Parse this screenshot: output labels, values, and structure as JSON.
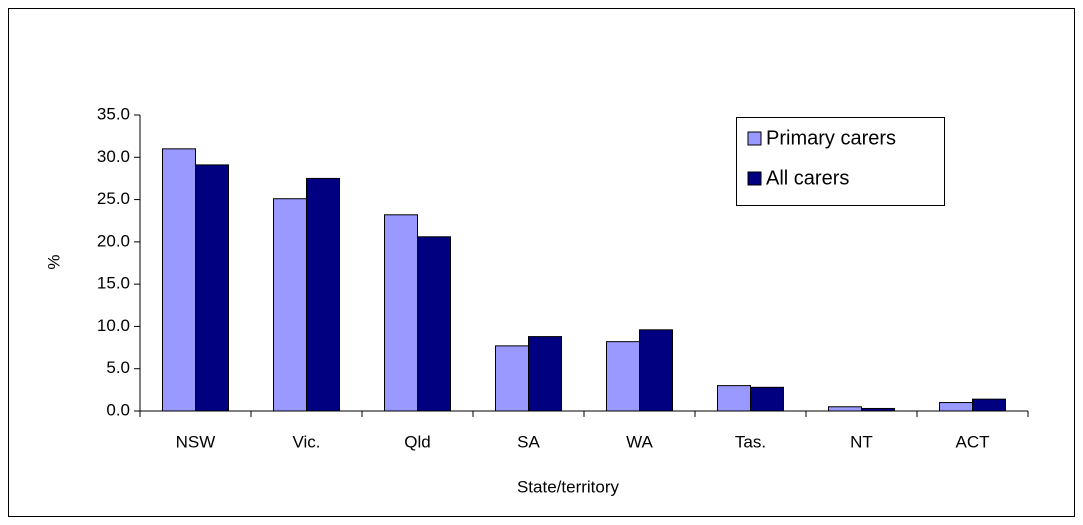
{
  "chart_data": {
    "type": "bar",
    "x_label": "State/territory",
    "y_label": "%",
    "categories": [
      "NSW",
      "Vic.",
      "Qld",
      "SA",
      "WA",
      "Tas.",
      "NT",
      "ACT"
    ],
    "series": [
      {
        "name": "Primary carers",
        "color": "#9999ff",
        "values": [
          31.0,
          25.1,
          23.2,
          7.7,
          8.2,
          3.0,
          0.5,
          1.0
        ]
      },
      {
        "name": "All carers",
        "color": "#000080",
        "values": [
          29.1,
          27.5,
          20.6,
          8.8,
          9.6,
          2.8,
          0.3,
          1.4
        ]
      }
    ],
    "ylim": [
      0,
      35
    ],
    "yticks": [
      {
        "value": 0,
        "label": "0.0"
      },
      {
        "value": 5,
        "label": "5.0"
      },
      {
        "value": 10,
        "label": "10.0"
      },
      {
        "value": 15,
        "label": "15.0"
      },
      {
        "value": 20,
        "label": "20.0"
      },
      {
        "value": 25,
        "label": "25.0"
      },
      {
        "value": 30,
        "label": "30.0"
      },
      {
        "value": 35,
        "label": "35.0"
      }
    ],
    "legend": "top-right"
  }
}
